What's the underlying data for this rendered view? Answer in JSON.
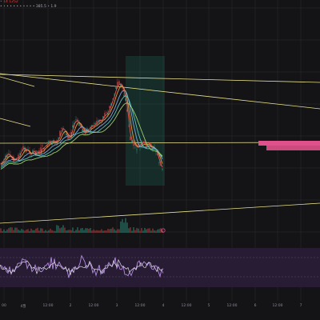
{
  "legend": {
    "line1": "• 14 1252",
    "line2": "• • • • • • • • • • • 385.5 • 1.9"
  },
  "x_axis": {
    "labels": [
      "00",
      "4월",
      "12:00",
      "2",
      "12:00",
      "3",
      "12:00",
      "4",
      "12:00",
      "5",
      "12:00",
      "6",
      "12:00",
      "7"
    ]
  },
  "colors": {
    "background": "#141417",
    "panel": "#1c1b1f",
    "grid": "#2a2a30",
    "trendline": "#e8e08a",
    "candle_up": "#2fa58c",
    "candle_down": "#e04848",
    "ma_red": "#e05858",
    "ma_orange": "#e79a40",
    "ma_blue": "#7fa5d8",
    "ma_teal": "#56c1b8",
    "ma_green": "#9bcf70",
    "highlight_zone": "#2ad4a4",
    "pink_zone": "#e0508a",
    "oscillator_bg": "#2b1c3a",
    "oscillator_line": "#b58de0",
    "oscillator_signal": "#e0e0e8"
  }
}
